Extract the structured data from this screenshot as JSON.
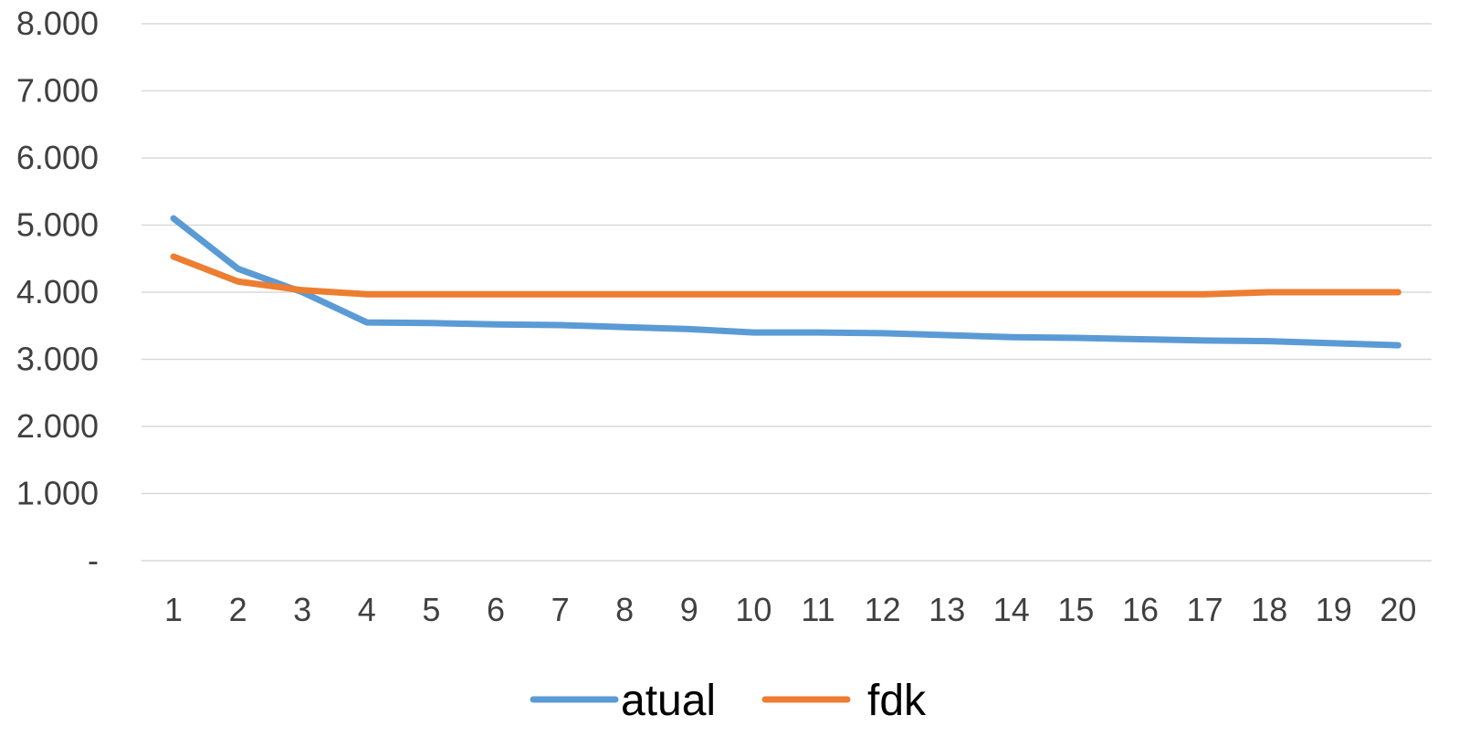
{
  "chart_data": {
    "type": "line",
    "categories": [
      "1",
      "2",
      "3",
      "4",
      "5",
      "6",
      "7",
      "8",
      "9",
      "10",
      "11",
      "12",
      "13",
      "14",
      "15",
      "16",
      "17",
      "18",
      "19",
      "20"
    ],
    "series": [
      {
        "name": "atual",
        "color": "#5B9BD5",
        "values": [
          5100,
          4350,
          4000,
          3550,
          3540,
          3520,
          3510,
          3480,
          3450,
          3400,
          3400,
          3390,
          3360,
          3330,
          3320,
          3300,
          3280,
          3270,
          3240,
          3210
        ]
      },
      {
        "name": "fdk",
        "color": "#ED7D31",
        "values": [
          4530,
          4160,
          4030,
          3970,
          3970,
          3970,
          3970,
          3970,
          3970,
          3970,
          3970,
          3970,
          3970,
          3970,
          3970,
          3970,
          3970,
          4000,
          4000,
          4000
        ]
      }
    ],
    "yticks": [
      {
        "value": 0,
        "label": "-"
      },
      {
        "value": 1000,
        "label": "1.000"
      },
      {
        "value": 2000,
        "label": "2.000"
      },
      {
        "value": 3000,
        "label": "3.000"
      },
      {
        "value": 4000,
        "label": "4.000"
      },
      {
        "value": 5000,
        "label": "5.000"
      },
      {
        "value": 6000,
        "label": "6.000"
      },
      {
        "value": 7000,
        "label": "7.000"
      },
      {
        "value": 8000,
        "label": "8.000"
      }
    ],
    "ylim": [
      0,
      8000
    ],
    "grid": true,
    "legend": "bottom",
    "gridline_color": "#D9D9D9"
  }
}
